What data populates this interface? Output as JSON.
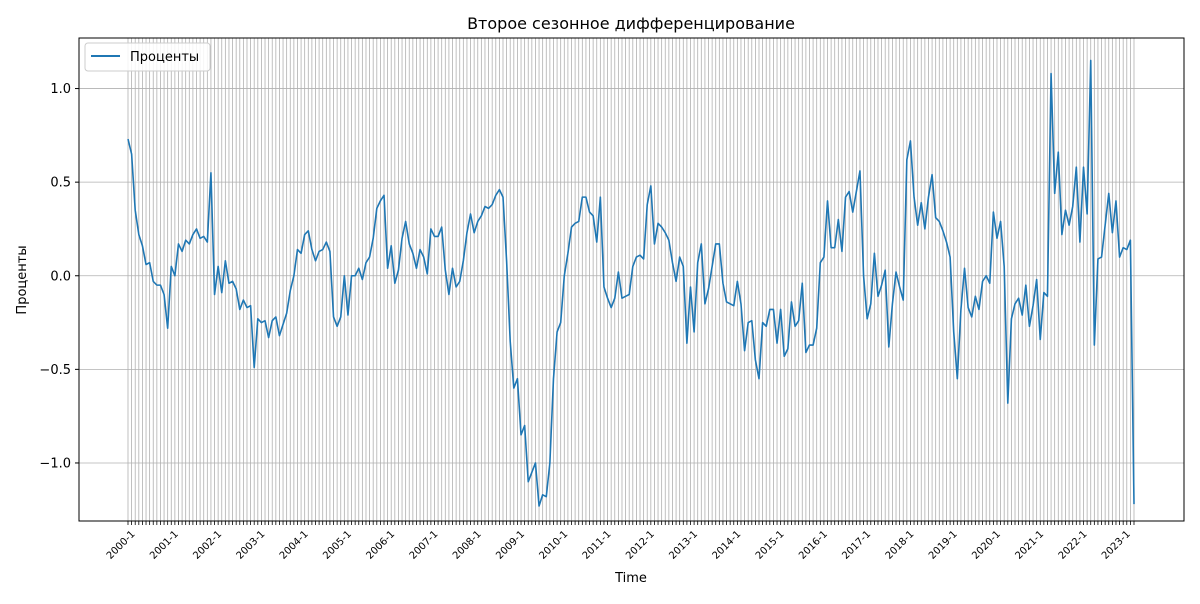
{
  "chart_data": {
    "type": "line",
    "title": "Второе сезонное дифференцирование",
    "xlabel": "Time",
    "ylabel": "Проценты",
    "legend": {
      "position": "top-left",
      "entries": [
        "Проценты"
      ]
    },
    "grid": true,
    "ylim": [
      -1.31,
      1.27
    ],
    "yticks": [
      -1.0,
      -0.5,
      0.0,
      0.5,
      1.0
    ],
    "ytick_labels": [
      "−1.0",
      "−0.5",
      "0.0",
      "0.5",
      "1.0"
    ],
    "xtick_labels": [
      "2000-1",
      "2001-1",
      "2002-1",
      "2003-1",
      "2004-1",
      "2005-1",
      "2006-1",
      "2007-1",
      "2008-1",
      "2009-1",
      "2010-1",
      "2011-1",
      "2012-1",
      "2013-1",
      "2014-1",
      "2015-1",
      "2016-1",
      "2017-1",
      "2018-1",
      "2019-1",
      "2020-1",
      "2021-1",
      "2022-1",
      "2023-1"
    ],
    "x_start": "2000-1",
    "x_frequency": "monthly",
    "line_color": "#1f77b4",
    "series": [
      {
        "name": "Проценты",
        "values": [
          0.73,
          0.65,
          0.35,
          0.22,
          0.16,
          0.06,
          0.07,
          -0.03,
          -0.05,
          -0.05,
          -0.1,
          -0.28,
          0.05,
          0.0,
          0.17,
          0.13,
          0.19,
          0.17,
          0.22,
          0.25,
          0.2,
          0.21,
          0.18,
          0.55,
          -0.1,
          0.05,
          -0.09,
          0.08,
          -0.04,
          -0.03,
          -0.07,
          -0.18,
          -0.13,
          -0.17,
          -0.16,
          -0.49,
          -0.23,
          -0.25,
          -0.24,
          -0.33,
          -0.24,
          -0.22,
          -0.32,
          -0.26,
          -0.2,
          -0.08,
          0.0,
          0.14,
          0.12,
          0.22,
          0.24,
          0.14,
          0.08,
          0.13,
          0.14,
          0.18,
          0.13,
          -0.22,
          -0.27,
          -0.22,
          0.0,
          -0.21,
          0.0,
          0.0,
          0.04,
          -0.02,
          0.07,
          0.1,
          0.2,
          0.36,
          0.4,
          0.43,
          0.04,
          0.16,
          -0.04,
          0.03,
          0.2,
          0.29,
          0.17,
          0.12,
          0.04,
          0.14,
          0.1,
          0.01,
          0.25,
          0.21,
          0.21,
          0.26,
          0.03,
          -0.1,
          0.04,
          -0.06,
          -0.03,
          0.08,
          0.23,
          0.33,
          0.23,
          0.29,
          0.32,
          0.37,
          0.36,
          0.38,
          0.43,
          0.46,
          0.42,
          0.08,
          -0.35,
          -0.6,
          -0.55,
          -0.85,
          -0.8,
          -1.1,
          -1.05,
          -1.0,
          -1.23,
          -1.17,
          -1.18,
          -1.0,
          -0.55,
          -0.3,
          -0.25,
          0.0,
          0.12,
          0.26,
          0.28,
          0.29,
          0.42,
          0.42,
          0.34,
          0.32,
          0.18,
          0.42,
          -0.06,
          -0.12,
          -0.17,
          -0.12,
          0.02,
          -0.12,
          -0.11,
          -0.1,
          0.05,
          0.1,
          0.11,
          0.09,
          0.38,
          0.48,
          0.17,
          0.28,
          0.26,
          0.23,
          0.19,
          0.07,
          -0.03,
          0.1,
          0.05,
          -0.36,
          -0.06,
          -0.3,
          0.07,
          0.17,
          -0.15,
          -0.07,
          0.05,
          0.17,
          0.17,
          -0.04,
          -0.14,
          -0.15,
          -0.16,
          -0.03,
          -0.15,
          -0.4,
          -0.25,
          -0.24,
          -0.45,
          -0.55,
          -0.25,
          -0.27,
          -0.18,
          -0.18,
          -0.36,
          -0.18,
          -0.43,
          -0.39,
          -0.14,
          -0.27,
          -0.24,
          -0.04,
          -0.41,
          -0.37,
          -0.37,
          -0.28,
          0.07,
          0.1,
          0.4,
          0.15,
          0.15,
          0.3,
          0.13,
          0.42,
          0.45,
          0.34,
          0.45,
          0.56,
          0.0,
          -0.23,
          -0.15,
          0.12,
          -0.11,
          -0.05,
          0.03,
          -0.38,
          -0.15,
          0.02,
          -0.06,
          -0.13,
          0.62,
          0.72,
          0.42,
          0.27,
          0.39,
          0.25,
          0.42,
          0.54,
          0.31,
          0.29,
          0.24,
          0.18,
          0.1,
          -0.3,
          -0.55,
          -0.18,
          0.04,
          -0.17,
          -0.22,
          -0.11,
          -0.18,
          -0.03,
          0.0,
          -0.04,
          0.34,
          0.2,
          0.29,
          0.05,
          -0.68,
          -0.23,
          -0.15,
          -0.12,
          -0.21,
          -0.05,
          -0.27,
          -0.16,
          -0.02,
          -0.34,
          -0.09,
          -0.11,
          1.08,
          0.44,
          0.66,
          0.22,
          0.35,
          0.27,
          0.37,
          0.58,
          0.18,
          0.58,
          0.33,
          1.15,
          -0.37,
          0.09,
          0.1,
          0.27,
          0.44,
          0.23,
          0.4,
          0.1,
          0.15,
          0.14,
          0.19,
          -1.22
        ]
      }
    ]
  }
}
